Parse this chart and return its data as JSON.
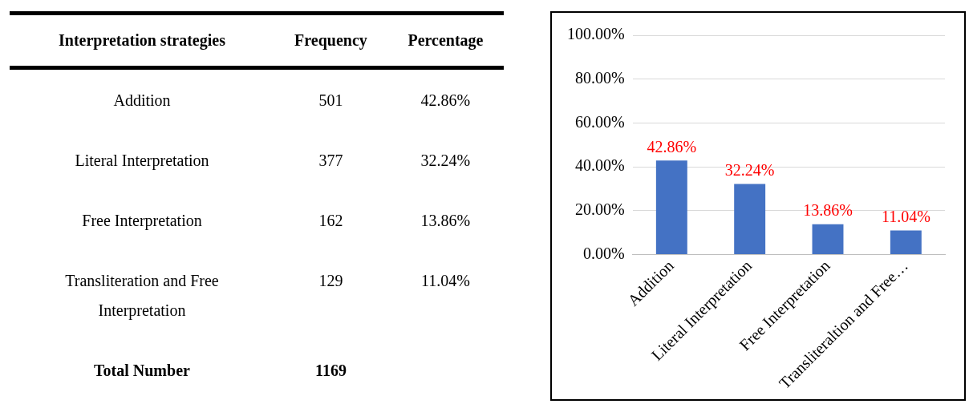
{
  "chart_data": [
    {
      "type": "other",
      "data_labels": true,
      "title": "Interpretation strategies",
      "categories": [
        "Addition",
        "Literal Interpretation",
        "Free Interpretation",
        "Transliteration and Free Interpretation",
        "Total Number"
      ],
      "series": [
        {
          "name": "Frequency",
          "values": [
            501,
            377,
            162,
            129,
            1169
          ]
        },
        {
          "name": "Percentage",
          "values": [
            42.86,
            32.24,
            13.86,
            11.04,
            null
          ],
          "value_labels": [
            "42.86%",
            "32.24%",
            "13.86%",
            "11.04%",
            null
          ]
        }
      ]
    },
    {
      "type": "bar",
      "categories": [
        "Addition",
        "Literal Interpretation",
        "Free Interpretation",
        "Transliteraltion and Free…"
      ],
      "values": [
        42.86,
        32.24,
        13.86,
        11.04
      ],
      "color": "#4472c4",
      "value_labels": [
        "42.86%",
        "32.24%",
        "13.86%",
        "11.04%"
      ],
      "ylim": [
        0,
        100
      ],
      "yticks": [
        {
          "value": 0,
          "label": "0.00%"
        },
        {
          "value": 20,
          "label": "20.00%"
        },
        {
          "value": 40,
          "label": "40.00%"
        },
        {
          "value": 60,
          "label": "60.00%"
        },
        {
          "value": 80,
          "label": "80.00%"
        },
        {
          "value": 100,
          "label": "100.00%"
        }
      ],
      "grid": "y"
    }
  ]
}
